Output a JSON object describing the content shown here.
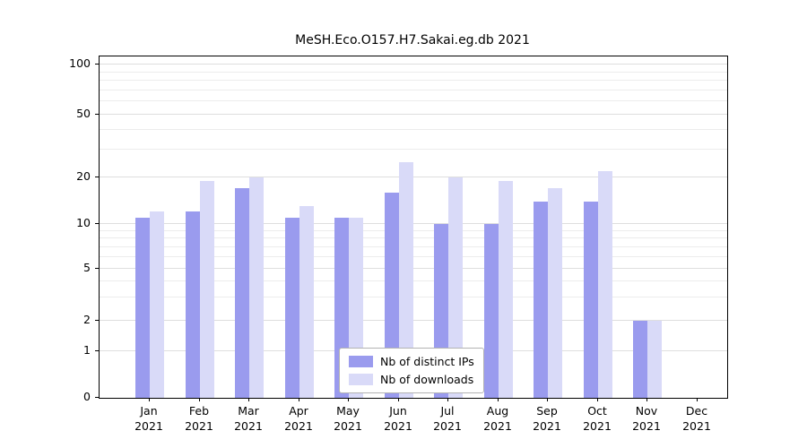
{
  "title": "MeSH.Eco.O157.H7.Sakai.eg.db 2021",
  "chart_data": {
    "type": "bar",
    "title": "MeSH.Eco.O157.H7.Sakai.eg.db 2021",
    "categories": [
      "Jan",
      "Feb",
      "Mar",
      "Apr",
      "May",
      "Jun",
      "Jul",
      "Aug",
      "Sep",
      "Oct",
      "Nov",
      "Dec"
    ],
    "category_year": "2021",
    "series": [
      {
        "name": "Nb of distinct IPs",
        "color": "#9a9bee",
        "values": [
          11,
          12,
          17,
          11,
          11,
          16,
          10,
          10,
          14,
          14,
          2,
          0
        ]
      },
      {
        "name": "Nb of downloads",
        "color": "#d9daf8",
        "values": [
          12,
          19,
          20,
          13,
          11,
          25,
          20,
          19,
          17,
          22,
          2,
          0
        ]
      }
    ],
    "xlabel": "",
    "ylabel": "",
    "yscale": "log-like",
    "yticks": [
      0,
      1,
      2,
      5,
      10,
      20,
      50,
      100
    ],
    "ylim": [
      0,
      115
    ],
    "grid": true,
    "legend_position": "bottom-center-inside"
  }
}
